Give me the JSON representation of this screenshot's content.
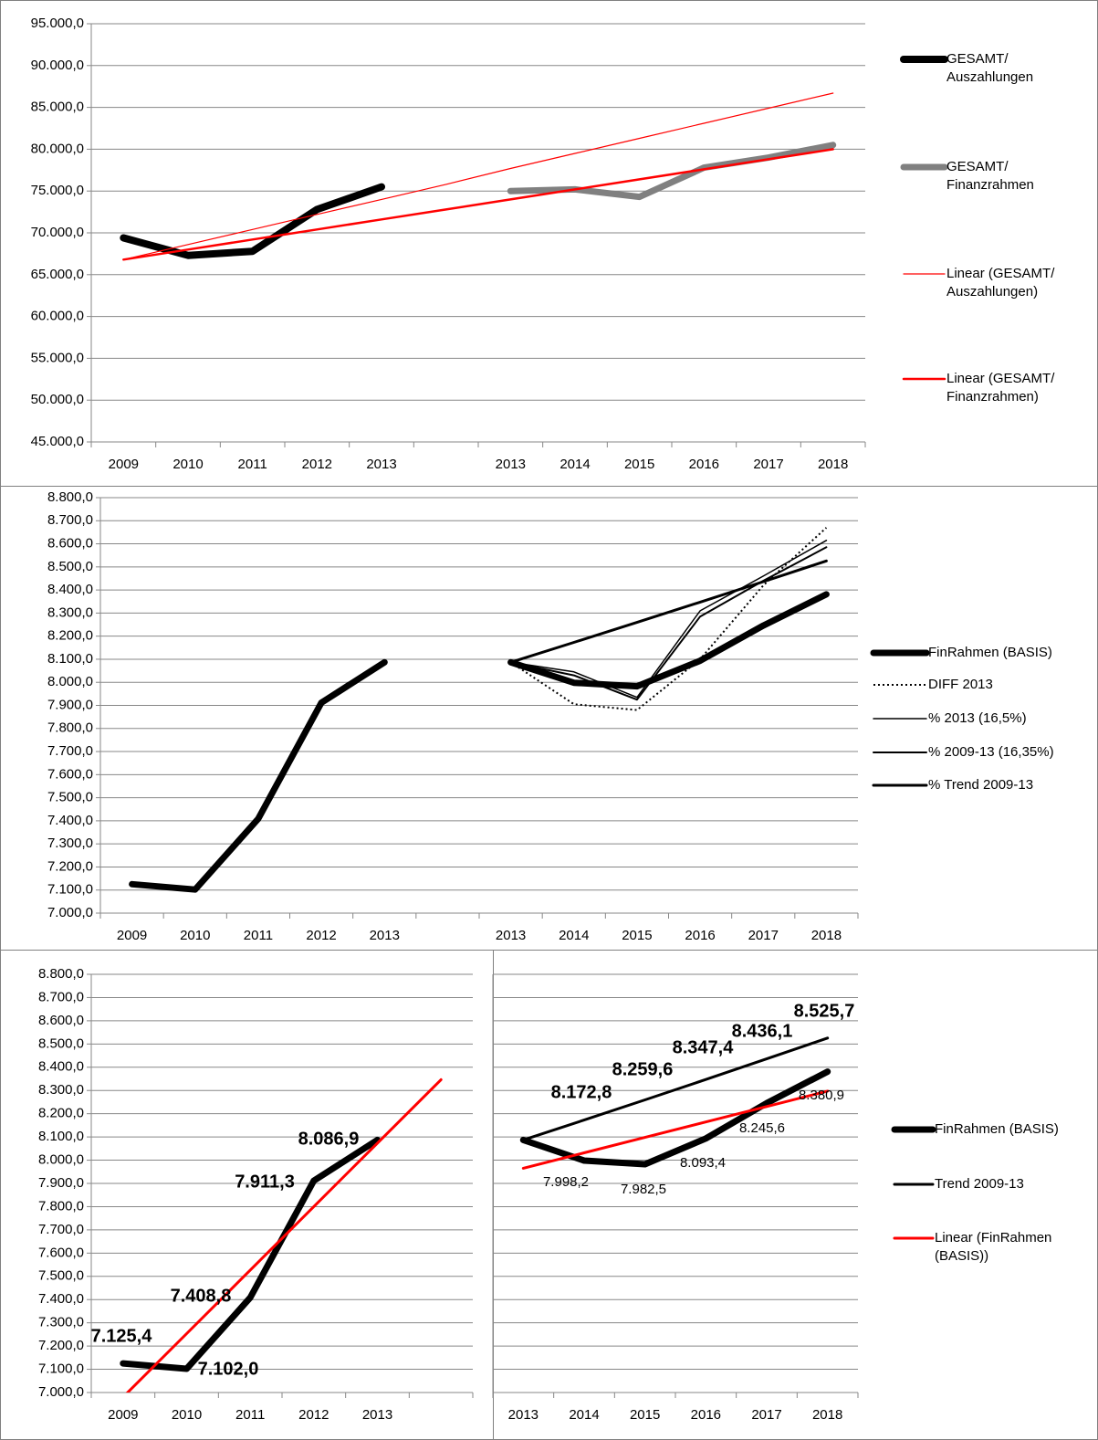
{
  "chart_data": [
    {
      "type": "line",
      "categories": [
        "2009",
        "2010",
        "2011",
        "2012",
        "2013",
        null,
        "2013",
        "2014",
        "2015",
        "2016",
        "2017",
        "2018"
      ],
      "ylim": [
        45000,
        95000
      ],
      "yticks": [
        {
          "value": 45000,
          "label": "45.000,0"
        },
        {
          "value": 50000,
          "label": "50.000,0"
        },
        {
          "value": 55000,
          "label": "55.000,0"
        },
        {
          "value": 60000,
          "label": "60.000,0"
        },
        {
          "value": 65000,
          "label": "65.000,0"
        },
        {
          "value": 70000,
          "label": "70.000,0"
        },
        {
          "value": 75000,
          "label": "75.000,0"
        },
        {
          "value": 80000,
          "label": "80.000,0"
        },
        {
          "value": 85000,
          "label": "85.000,0"
        },
        {
          "value": 90000,
          "label": "90.000,0"
        },
        {
          "value": 95000,
          "label": "95.000,0"
        }
      ],
      "grid": true,
      "legend": "right",
      "series": [
        {
          "name": "GESAMT/ Auszahlungen",
          "color": "#000000",
          "values": [
            69400,
            67300,
            67800,
            72800,
            75500,
            null,
            null,
            null,
            null,
            null,
            null,
            null
          ]
        },
        {
          "name": "GESAMT/ Finanzrahmen",
          "color": "#808080",
          "values": [
            null,
            null,
            null,
            null,
            null,
            null,
            75000,
            75200,
            74300,
            77800,
            79000,
            80500
          ]
        },
        {
          "name": "Linear (GESAMT/ Auszahlungen)",
          "color": "#ff0000",
          "values": [
            66800,
            68600,
            70400,
            72200,
            74000,
            75800,
            77700,
            79500,
            81300,
            83100,
            84900,
            86700
          ]
        },
        {
          "name": "Linear (GESAMT/ Finanzrahmen)",
          "color": "#ff0000",
          "values": [
            66800,
            68000,
            69200,
            70400,
            71600,
            72800,
            74000,
            75200,
            76400,
            77600,
            78800,
            80000
          ]
        }
      ]
    },
    {
      "type": "line",
      "categories": [
        "2009",
        "2010",
        "2011",
        "2012",
        "2013",
        null,
        "2013",
        "2014",
        "2015",
        "2016",
        "2017",
        "2018"
      ],
      "ylim": [
        7000,
        8800
      ],
      "yticks": [
        {
          "value": 7000,
          "label": "7.000,0"
        },
        {
          "value": 7100,
          "label": "7.100,0"
        },
        {
          "value": 7200,
          "label": "7.200,0"
        },
        {
          "value": 7300,
          "label": "7.300,0"
        },
        {
          "value": 7400,
          "label": "7.400,0"
        },
        {
          "value": 7500,
          "label": "7.500,0"
        },
        {
          "value": 7600,
          "label": "7.600,0"
        },
        {
          "value": 7700,
          "label": "7.700,0"
        },
        {
          "value": 7800,
          "label": "7.800,0"
        },
        {
          "value": 7900,
          "label": "7.900,0"
        },
        {
          "value": 8000,
          "label": "8.000,0"
        },
        {
          "value": 8100,
          "label": "8.100,0"
        },
        {
          "value": 8200,
          "label": "8.200,0"
        },
        {
          "value": 8300,
          "label": "8.300,0"
        },
        {
          "value": 8400,
          "label": "8.400,0"
        },
        {
          "value": 8500,
          "label": "8.500,0"
        },
        {
          "value": 8600,
          "label": "8.600,0"
        },
        {
          "value": 8700,
          "label": "8.700,0"
        },
        {
          "value": 8800,
          "label": "8.800,0"
        }
      ],
      "grid": true,
      "legend": "right",
      "series": [
        {
          "name": "FinRahmen (BASIS)",
          "color": "#000000",
          "values": [
            7125.4,
            7102.0,
            7408.8,
            7911.3,
            8086.9,
            null,
            8086.9,
            7998.2,
            7982.5,
            8093.4,
            8245.6,
            8380.9
          ]
        },
        {
          "name": "DIFF 2013",
          "color": "#000000",
          "dash": "dotted",
          "values": [
            null,
            null,
            null,
            null,
            null,
            null,
            8086.9,
            7905,
            7880,
            8100,
            8420,
            8670
          ]
        },
        {
          "name": "% 2013 (16,5%)",
          "color": "#000000",
          "values": [
            null,
            null,
            null,
            null,
            null,
            null,
            8086.9,
            8045,
            7935,
            8310,
            8460,
            8615
          ]
        },
        {
          "name": "% 2009-13 (16,35%)",
          "color": "#000000",
          "values": [
            null,
            null,
            null,
            null,
            null,
            null,
            8086.9,
            8030,
            7925,
            8285,
            8440,
            8585
          ]
        },
        {
          "name": "% Trend 2009-13",
          "color": "#000000",
          "values": [
            null,
            null,
            null,
            null,
            null,
            null,
            8086.9,
            8172.8,
            8259.6,
            8347.4,
            8436.1,
            8525.7
          ]
        }
      ]
    },
    {
      "type": "line",
      "categories": [
        "2009",
        "2010",
        "2011",
        "2012",
        "2013",
        null
      ],
      "ylim": [
        7000,
        8800
      ],
      "yticks": [
        {
          "value": 7000,
          "label": "7.000,0"
        },
        {
          "value": 7100,
          "label": "7.100,0"
        },
        {
          "value": 7200,
          "label": "7.200,0"
        },
        {
          "value": 7300,
          "label": "7.300,0"
        },
        {
          "value": 7400,
          "label": "7.400,0"
        },
        {
          "value": 7500,
          "label": "7.500,0"
        },
        {
          "value": 7600,
          "label": "7.600,0"
        },
        {
          "value": 7700,
          "label": "7.700,0"
        },
        {
          "value": 7800,
          "label": "7.800,0"
        },
        {
          "value": 7900,
          "label": "7.900,0"
        },
        {
          "value": 8000,
          "label": "8.000,0"
        },
        {
          "value": 8100,
          "label": "8.100,0"
        },
        {
          "value": 8200,
          "label": "8.200,0"
        },
        {
          "value": 8300,
          "label": "8.300,0"
        },
        {
          "value": 8400,
          "label": "8.400,0"
        },
        {
          "value": 8500,
          "label": "8.500,0"
        },
        {
          "value": 8600,
          "label": "8.600,0"
        },
        {
          "value": 8700,
          "label": "8.700,0"
        },
        {
          "value": 8800,
          "label": "8.800,0"
        }
      ],
      "grid": true,
      "series": [
        {
          "name": "FinRahmen (BASIS)",
          "color": "#000000",
          "values": [
            7125.4,
            7102.0,
            7408.8,
            7911.3,
            8086.9,
            null
          ],
          "value_labels": [
            "7.125,4",
            "7.102,0",
            "7.408,8",
            "7.911,3",
            "8.086,9",
            null
          ]
        },
        {
          "name": "Linear (FinRahmen (BASIS))",
          "color": "#ff0000",
          "values": [
            6980.4,
            7253.6,
            7526.9,
            7800.1,
            8073.3,
            8346.5
          ]
        }
      ]
    },
    {
      "type": "line",
      "categories": [
        "2013",
        "2014",
        "2015",
        "2016",
        "2017",
        "2018"
      ],
      "ylim": [
        7000,
        8800
      ],
      "grid": true,
      "legend": "right",
      "series": [
        {
          "name": "FinRahmen (BASIS)",
          "color": "#000000",
          "values": [
            8086.9,
            7998.2,
            7982.5,
            8093.4,
            8245.6,
            8380.9
          ],
          "value_labels": [
            null,
            "7.998,2",
            "7.982,5",
            "8.093,4",
            "8.245,6",
            "8.380,9"
          ]
        },
        {
          "name": "Trend 2009-13",
          "color": "#000000",
          "values": [
            8086.9,
            8172.8,
            8259.6,
            8347.4,
            8436.1,
            8525.7
          ],
          "value_labels": [
            null,
            "8.172,8",
            "8.259,6",
            "8.347,4",
            "8.436,1",
            "8.525,7"
          ]
        },
        {
          "name": "Linear (FinRahmen (BASIS))",
          "color": "#ff0000",
          "values": [
            7965.3,
            8031.7,
            8098.1,
            8164.4,
            8230.8,
            8297.2
          ]
        }
      ]
    }
  ]
}
